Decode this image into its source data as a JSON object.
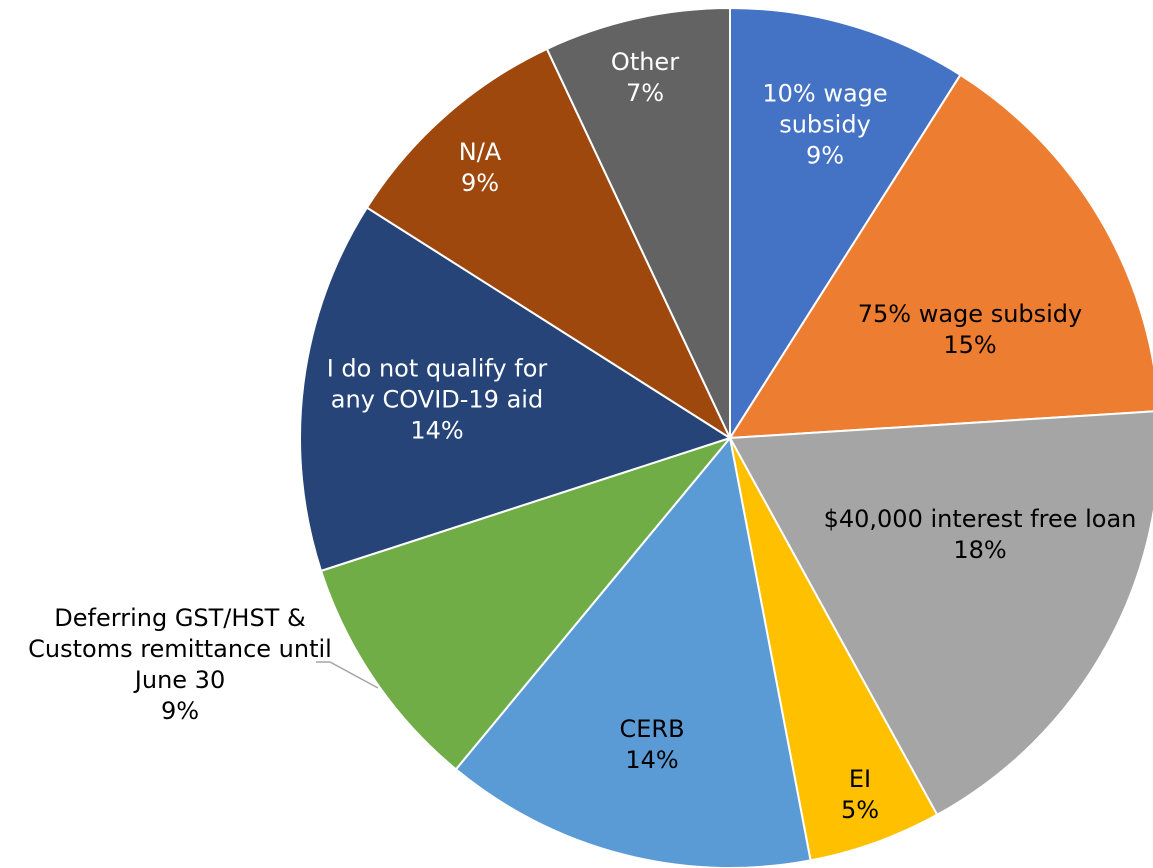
{
  "chart_data": {
    "type": "pie",
    "categories": [
      "10% wage subsidy",
      "75% wage subsidy",
      "$40,000 interest free loan",
      "EI",
      "CERB",
      "Deferring GST/HST & Customs remittance until June 30",
      "I do not qualify for any COVID-19 aid",
      "N/A",
      "Other"
    ],
    "values": [
      9,
      15,
      18,
      5,
      14,
      9,
      14,
      9,
      7
    ],
    "value_labels": [
      "9%",
      "15%",
      "18%",
      "5%",
      "14%",
      "9%",
      "14%",
      "9%",
      "7%"
    ],
    "colors": [
      "#4472c4",
      "#ed7d31",
      "#a5a5a5",
      "#ffc000",
      "#5b9bd5",
      "#70ad47",
      "#264478",
      "#9e480e",
      "#636363"
    ]
  }
}
